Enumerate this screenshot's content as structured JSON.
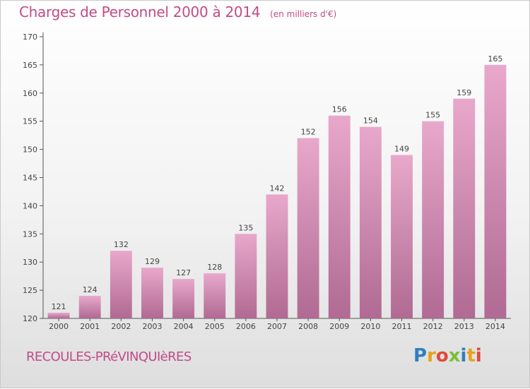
{
  "chart_data": {
    "type": "bar",
    "title": "Charges de Personnel 2000 à 2014",
    "subtitle": "(en milliers d'€)",
    "categories": [
      "2000",
      "2001",
      "2002",
      "2003",
      "2004",
      "2005",
      "2006",
      "2007",
      "2008",
      "2009",
      "2010",
      "2011",
      "2012",
      "2013",
      "2014"
    ],
    "values": [
      121,
      124,
      132,
      129,
      127,
      128,
      135,
      142,
      152,
      156,
      154,
      149,
      155,
      159,
      165
    ],
    "ylim": [
      120,
      170
    ],
    "yticks": [
      120,
      125,
      130,
      135,
      140,
      145,
      150,
      155,
      160,
      165,
      170
    ],
    "grid": false,
    "bar_color": "#d98bb5",
    "xlabel": "",
    "ylabel": ""
  },
  "footer": {
    "location": "RECOULES-PRéVINQUIèRES",
    "logo_text": "Proxiti"
  }
}
